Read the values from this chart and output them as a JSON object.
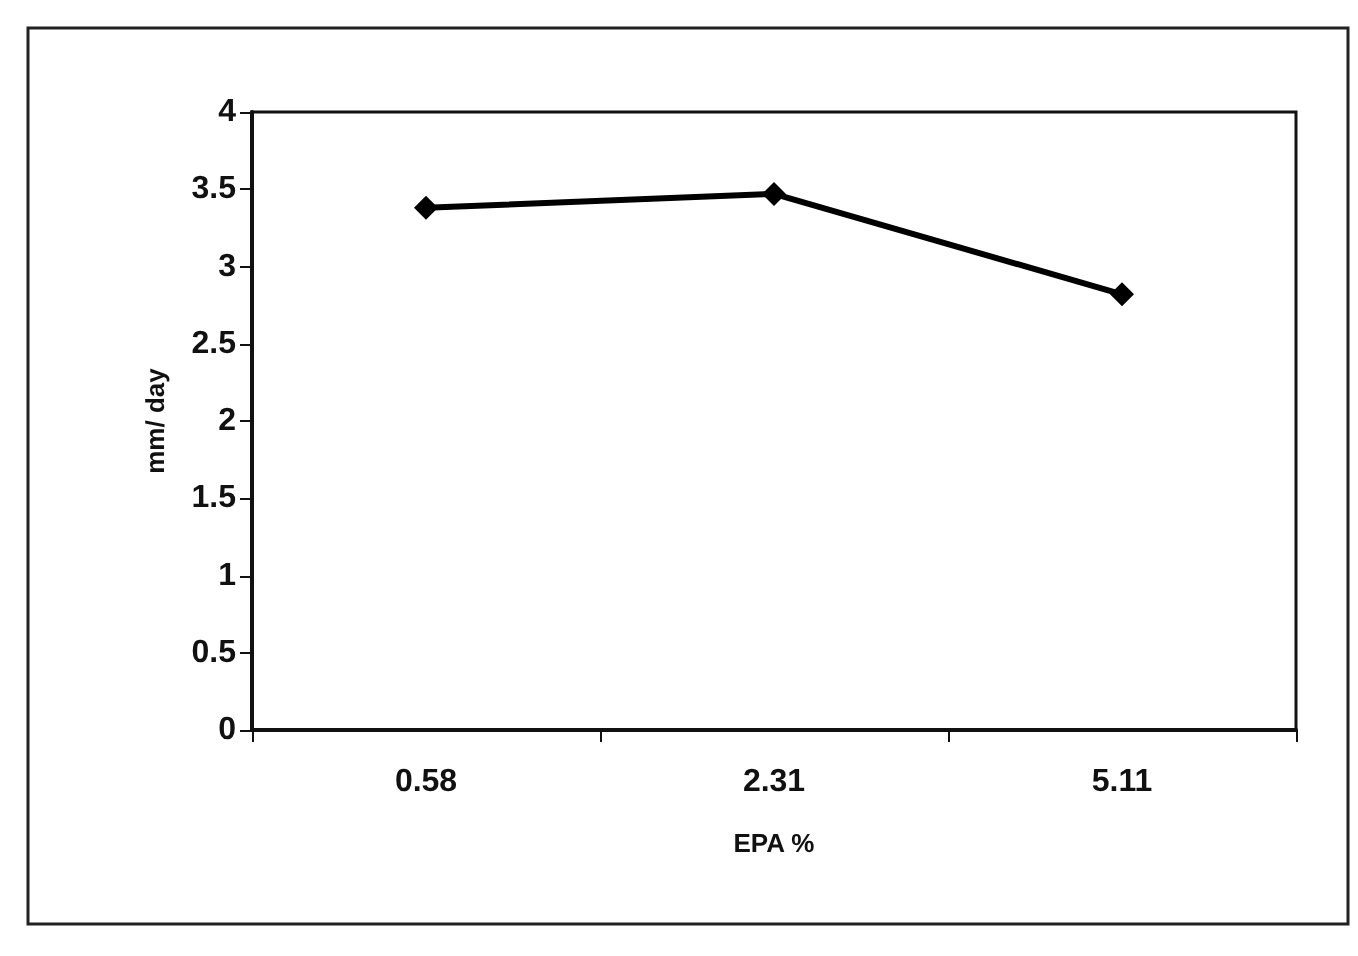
{
  "chart_data": {
    "type": "line",
    "xlabel": "EPA %",
    "ylabel": "mm/ day",
    "categories": [
      "0.58",
      "2.31",
      "5.11"
    ],
    "series": [
      {
        "color": "#000000",
        "values": [
          3.38,
          3.47,
          2.82
        ]
      }
    ],
    "ylim": [
      0,
      4
    ],
    "yticks": [
      0,
      0.5,
      1,
      1.5,
      2,
      2.5,
      3,
      3.5,
      4
    ],
    "grid": false,
    "marker": "diamond",
    "line_style": "solid"
  }
}
